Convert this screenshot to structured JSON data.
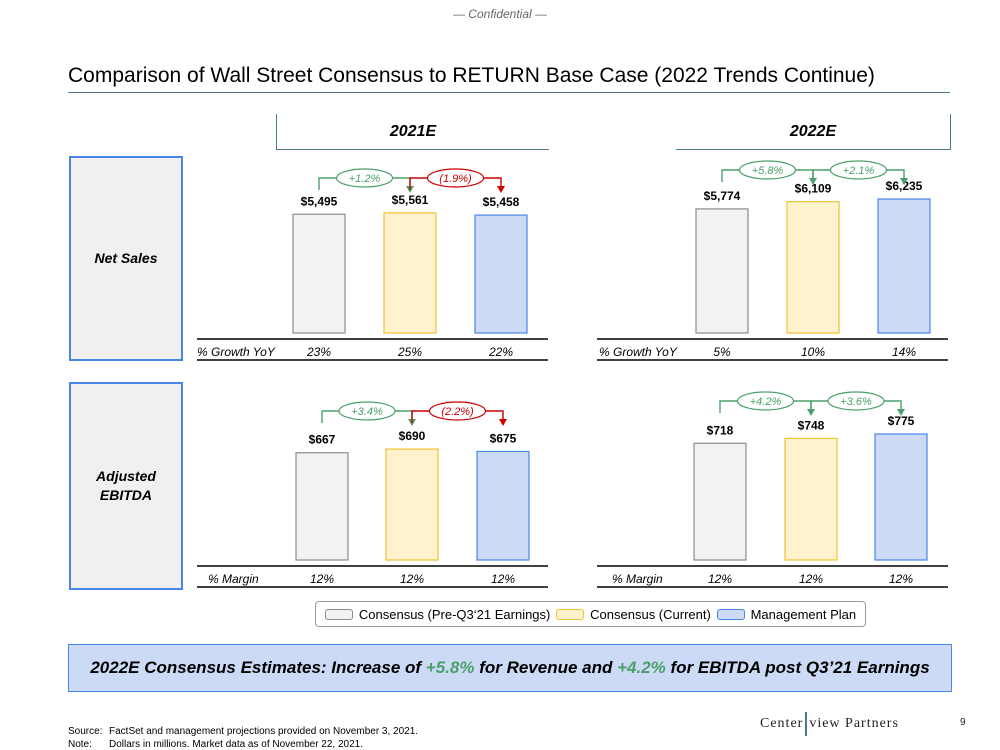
{
  "header": {
    "confidential": "— Confidential —",
    "title": "Comparison of Wall Street Consensus to RETURN Base Case (2022 Trends Continue)"
  },
  "columns": {
    "left": "2021E",
    "right": "2022E"
  },
  "rows": {
    "net_sales": "Net Sales",
    "ebitda_line1": "Adjusted",
    "ebitda_line2": "EBITDA"
  },
  "legend": {
    "items": [
      {
        "label": "Consensus (Pre-Q3‘21 Earnings)",
        "fill": "#f2f2f2",
        "stroke": "#8c8c8c"
      },
      {
        "label": "Consensus (Current)",
        "fill": "#fff2cc",
        "stroke": "#f1c232"
      },
      {
        "label": "Management Plan",
        "fill": "#ccdaf5",
        "stroke": "#4a86e8"
      }
    ]
  },
  "callout": {
    "prefix": "2022E Consensus Estimates: Increase of ",
    "revenue_pct": "+5.8%",
    "middle": " for Revenue and ",
    "ebitda_pct": "+4.2%",
    "suffix": " for EBITDA post Q3’21 Earnings"
  },
  "footer": {
    "source_label": "Source:",
    "source_text": "FactSet and management projections provided on November 3, 2021.",
    "note_label": "Note:",
    "note_text": "Dollars in millions. Market data as of November 22, 2021.",
    "brand_left": "Center",
    "brand_right": "view Partners",
    "page_number": "9"
  },
  "colors": {
    "up": "#4aa069",
    "down": "#cc0000",
    "axis": "#000000"
  },
  "chart_data": [
    {
      "type": "bar",
      "title": "Net Sales 2021E",
      "series_label": "% Growth YoY",
      "categories": [
        "Consensus (Pre-Q3‘21 Earnings)",
        "Consensus (Current)",
        "Management Plan"
      ],
      "values": [
        5495,
        5561,
        5458
      ],
      "value_labels": [
        "$5,495",
        "$5,561",
        "$5,458"
      ],
      "ylim": [
        0,
        5600
      ],
      "row_values": [
        "23%",
        "25%",
        "22%"
      ],
      "changes": [
        {
          "label": "+1.2%",
          "dir": "up"
        },
        {
          "label": "(1.9%)",
          "dir": "down"
        }
      ]
    },
    {
      "type": "bar",
      "title": "Net Sales 2022E",
      "series_label": "% Growth YoY",
      "categories": [
        "Consensus (Pre-Q3‘21 Earnings)",
        "Consensus (Current)",
        "Management Plan"
      ],
      "values": [
        5774,
        6109,
        6235
      ],
      "value_labels": [
        "$5,774",
        "$6,109",
        "$6,235"
      ],
      "ylim": [
        0,
        6235
      ],
      "row_values": [
        "5%",
        "10%",
        "14%"
      ],
      "changes": [
        {
          "label": "+5.8%",
          "dir": "up"
        },
        {
          "label": "+2.1%",
          "dir": "up"
        }
      ]
    },
    {
      "type": "bar",
      "title": "Adjusted EBITDA 2021E",
      "series_label": "% Margin",
      "categories": [
        "Consensus (Pre-Q3‘21 Earnings)",
        "Consensus (Current)",
        "Management Plan"
      ],
      "values": [
        667,
        690,
        675
      ],
      "value_labels": [
        "$667",
        "$690",
        "$675"
      ],
      "ylim": [
        0,
        740
      ],
      "row_values": [
        "12%",
        "12%",
        "12%"
      ],
      "changes": [
        {
          "label": "+3.4%",
          "dir": "up"
        },
        {
          "label": "(2.2%)",
          "dir": "down"
        }
      ]
    },
    {
      "type": "bar",
      "title": "Adjusted EBITDA 2022E",
      "series_label": "% Margin",
      "categories": [
        "Consensus (Pre-Q3‘21 Earnings)",
        "Consensus (Current)",
        "Management Plan"
      ],
      "values": [
        718,
        748,
        775
      ],
      "value_labels": [
        "$718",
        "$748",
        "$775"
      ],
      "ylim": [
        0,
        775
      ],
      "row_values": [
        "12%",
        "12%",
        "12%"
      ],
      "changes": [
        {
          "label": "+4.2%",
          "dir": "up"
        },
        {
          "label": "+3.6%",
          "dir": "up"
        }
      ]
    }
  ]
}
